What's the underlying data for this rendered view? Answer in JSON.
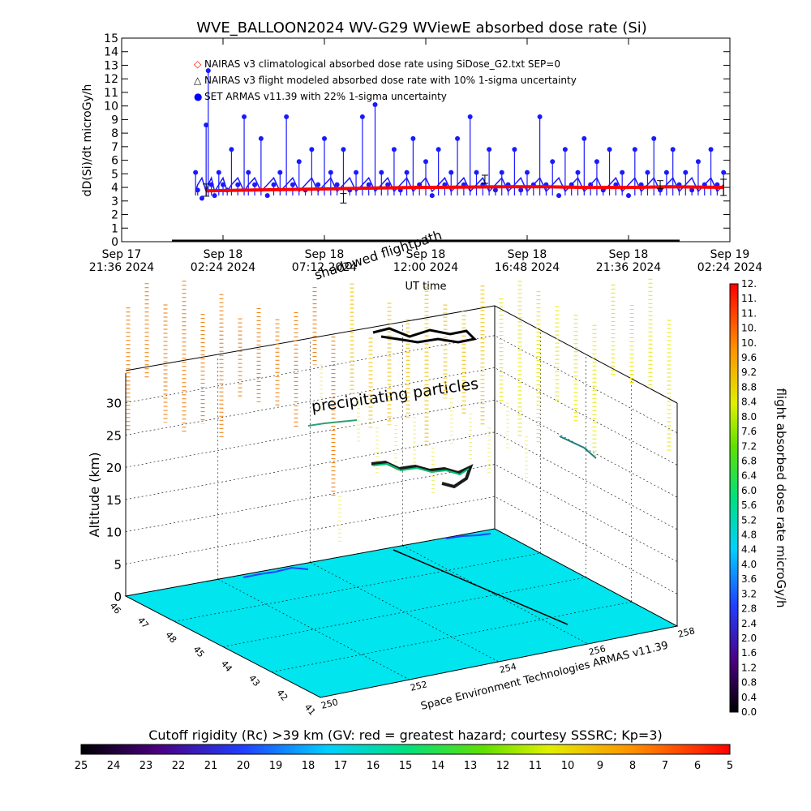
{
  "chart_data": [
    {
      "type": "scatter",
      "title": "WVE_BALLOON2024 WV-G29 WViewE absorbed dose rate (Si)",
      "ylabel": "dD(Si)/dt microGy/h",
      "xlabel": "UT time",
      "ylim": [
        0,
        15
      ],
      "yticks": [
        "0",
        "1",
        "2",
        "3",
        "4",
        "5",
        "6",
        "7",
        "8",
        "9",
        "10",
        "11",
        "12",
        "13",
        "14",
        "15"
      ],
      "xticks": [
        {
          "line1": "Sep 17",
          "line2": "21:36 2024"
        },
        {
          "line1": "Sep 18",
          "line2": "02:24 2024"
        },
        {
          "line1": "Sep 18",
          "line2": "07:12 2024"
        },
        {
          "line1": "Sep 18",
          "line2": "12:00 2024"
        },
        {
          "line1": "Sep 18",
          "line2": "16:48 2024"
        },
        {
          "line1": "Sep 18",
          "line2": "21:36 2024"
        },
        {
          "line1": "Sep 19",
          "line2": "02:24 2024"
        }
      ],
      "xlim_hours": [
        0,
        28.8
      ],
      "legend_position": "top-left",
      "legend": [
        {
          "symbol": "◇",
          "text": "NAIRAS v3 climatological absorbed dose rate using SiDose_G2.txt SEP=0",
          "color": "#ff0000"
        },
        {
          "symbol": "△",
          "text": "NAIRAS v3 flight modeled absorbed dose rate with 10% 1-sigma uncertainty",
          "color": "#000000"
        },
        {
          "symbol": "●",
          "text": "SET ARMAS v11.39 with 22% 1-sigma uncertainty",
          "color": "#0000ff"
        }
      ],
      "annotations": [
        "shadowed flightpath"
      ],
      "series": [
        {
          "name": "SET ARMAS v11.39 with 22% 1-sigma uncertainty",
          "color": "#1a1aff",
          "x": [
            3.5,
            3.6,
            3.8,
            4.0,
            4.1,
            4.25,
            4.4,
            4.6,
            4.8,
            5.0,
            5.2,
            5.5,
            5.8,
            6.0,
            6.3,
            6.6,
            6.9,
            7.2,
            7.5,
            7.8,
            8.1,
            8.4,
            8.7,
            9.0,
            9.3,
            9.6,
            9.9,
            10.2,
            10.5,
            10.8,
            11.1,
            11.4,
            11.7,
            12.0,
            12.3,
            12.6,
            12.9,
            13.2,
            13.5,
            13.8,
            14.1,
            14.4,
            14.7,
            15.0,
            15.3,
            15.6,
            15.9,
            16.2,
            16.5,
            16.8,
            17.1,
            17.4,
            17.7,
            18.0,
            18.3,
            18.6,
            18.9,
            19.2,
            19.5,
            19.8,
            20.1,
            20.4,
            20.7,
            21.0,
            21.3,
            21.6,
            21.9,
            22.2,
            22.5,
            22.8,
            23.1,
            23.4,
            23.7,
            24.0,
            24.3,
            24.6,
            24.9,
            25.2,
            25.5,
            25.8,
            26.1,
            26.4,
            26.7,
            27.0,
            27.3,
            27.6,
            27.9,
            28.2,
            28.5
          ],
          "y": [
            5.1,
            3.8,
            3.2,
            8.6,
            12.6,
            4.2,
            3.4,
            5.1,
            4.2,
            3.8,
            6.8,
            4.2,
            9.2,
            5.1,
            4.2,
            7.6,
            3.4,
            4.2,
            5.1,
            9.2,
            4.2,
            5.9,
            3.8,
            6.8,
            4.2,
            7.6,
            5.1,
            4.2,
            6.8,
            3.8,
            5.1,
            9.2,
            4.2,
            10.1,
            5.1,
            4.2,
            6.8,
            3.8,
            5.1,
            7.6,
            4.2,
            5.9,
            3.4,
            6.8,
            4.2,
            5.1,
            7.6,
            4.2,
            9.2,
            5.1,
            4.2,
            6.8,
            3.8,
            5.1,
            4.2,
            6.8,
            3.8,
            5.1,
            4.2,
            9.2,
            4.2,
            5.9,
            3.4,
            6.8,
            4.2,
            5.1,
            7.6,
            4.2,
            5.9,
            3.8,
            6.8,
            4.2,
            5.1,
            3.4,
            6.8,
            4.2,
            5.1,
            7.6,
            3.8,
            5.1,
            6.8,
            4.2,
            5.1,
            3.8,
            5.9,
            4.2,
            6.8,
            4.2,
            5.1
          ]
        },
        {
          "name": "NAIRAS v3 climatological absorbed dose rate using SiDose_G2.txt SEP=0",
          "color": "#ff0000",
          "x": [
            4.0,
            6.0,
            8.0,
            10.0,
            12.0,
            14.0,
            16.0,
            18.0,
            20.0,
            22.0,
            24.0,
            26.0,
            28.5
          ],
          "y": [
            3.75,
            3.8,
            3.85,
            3.9,
            3.95,
            4.0,
            4.02,
            4.05,
            4.05,
            4.0,
            4.0,
            4.05,
            4.0
          ]
        }
      ]
    },
    {
      "type": "scatter",
      "zlabel": "Altitude (km)",
      "zticks": [
        "0",
        "5",
        "10",
        "15",
        "20",
        "25",
        "30"
      ],
      "lat_ticks": [
        "46",
        "47",
        "48",
        "45",
        "44",
        "43",
        "42",
        "41"
      ],
      "lon_ticks": [
        "250",
        "252",
        "254",
        "256",
        "258"
      ],
      "annotations": [
        "precipitating particles"
      ],
      "credit": "Space Environment Technologies ARMAS v11.39",
      "colorbar_label": "flight absorbed dose rate microGy/h",
      "colorbar_ticks": [
        "0.0",
        "0.4",
        "0.8",
        "1.2",
        "1.6",
        "2.0",
        "2.4",
        "2.8",
        "3.2",
        "3.6",
        "4.0",
        "4.4",
        "4.8",
        "5.2",
        "5.6",
        "6.0",
        "6.4",
        "6.8",
        "7.2",
        "7.6",
        "8.0",
        "8.4",
        "8.8",
        "9.2",
        "9.6",
        "10.",
        "10.",
        "11.",
        "11.",
        "12."
      ],
      "bottom_colorbar_title": "Cutoff rigidity (Rc) >39 km (GV: red = greatest hazard; courtesy SSSRC; Kp=3)",
      "bottom_colorbar_ticks": [
        "25",
        "24",
        "23",
        "22",
        "21",
        "20",
        "19",
        "18",
        "17",
        "16",
        "15",
        "14",
        "13",
        "12",
        "11",
        "10",
        "9",
        "8",
        "7",
        "6",
        "5"
      ]
    }
  ],
  "colors": {
    "series_blue": "#1a1aff",
    "series_red": "#ff0000",
    "floor": "#00e5ee"
  }
}
